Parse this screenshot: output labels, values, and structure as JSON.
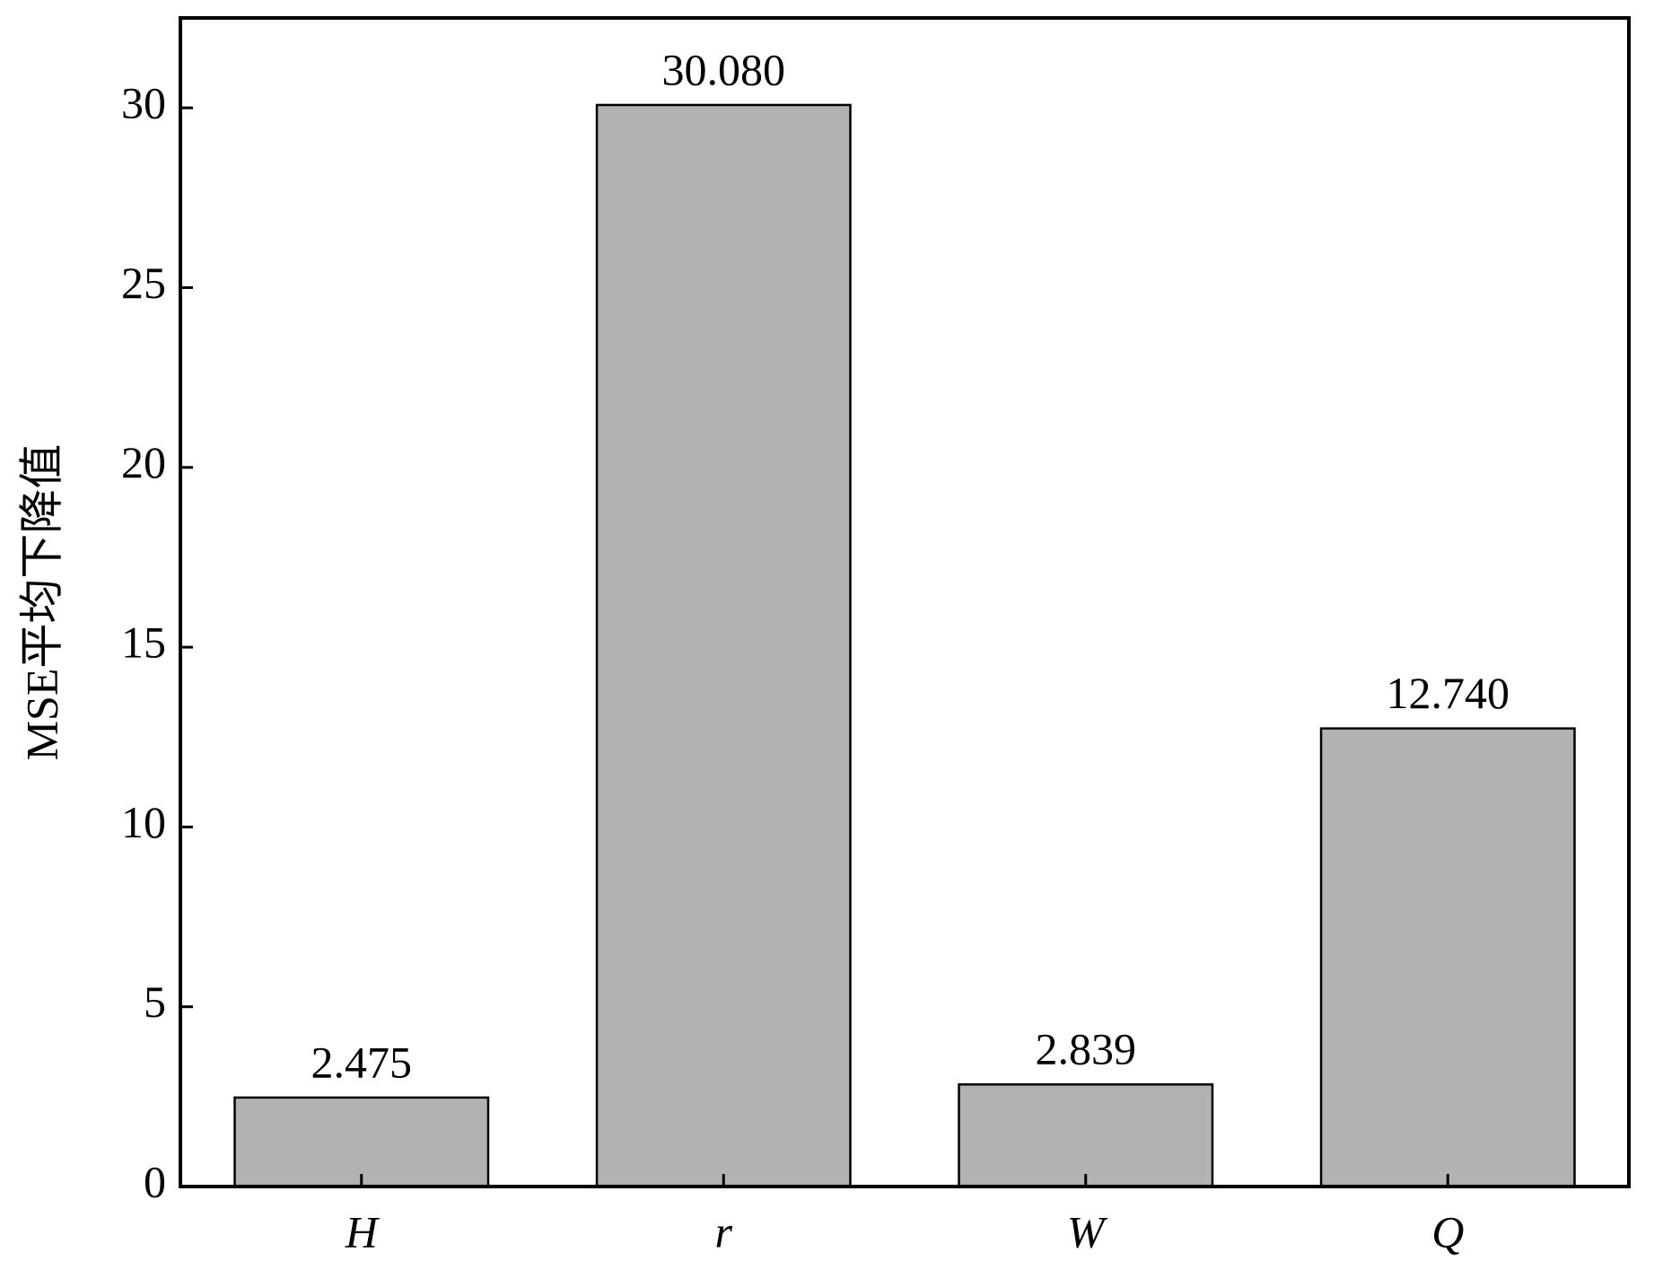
{
  "chart_data": {
    "type": "bar",
    "ylabel": "MSE平均下降值",
    "categories": [
      "H",
      "r",
      "W",
      "Q"
    ],
    "values": [
      2.475,
      30.08,
      2.839,
      12.74
    ],
    "value_labels": [
      "2.475",
      "30.080",
      "2.839",
      "12.740"
    ],
    "color": "#b2b2b2",
    "ylim": [
      0,
      32.5
    ],
    "yticks": [
      0,
      5,
      10,
      15,
      20,
      25,
      30
    ],
    "grid": false
  }
}
